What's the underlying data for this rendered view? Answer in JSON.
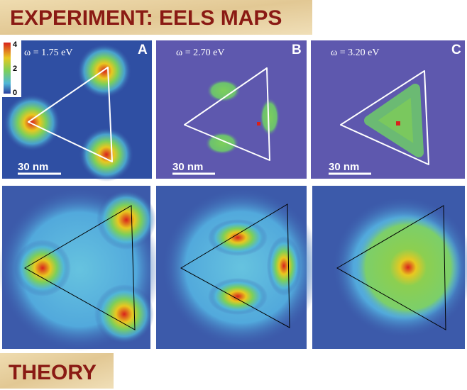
{
  "header": {
    "title": "EXPERIMENT: EELS MAPS"
  },
  "colorbar": {
    "ticks": [
      4,
      2,
      0
    ]
  },
  "panels": [
    {
      "label": "A",
      "energy": "ω = 1.75 eV",
      "scale_bar": "30 nm"
    },
    {
      "label": "B",
      "energy": "ω = 2.70 eV",
      "scale_bar": "30 nm"
    },
    {
      "label": "C",
      "energy": "ω = 3.20 eV",
      "scale_bar": "30 nm"
    }
  ],
  "footer": {
    "title": "THEORY"
  }
}
